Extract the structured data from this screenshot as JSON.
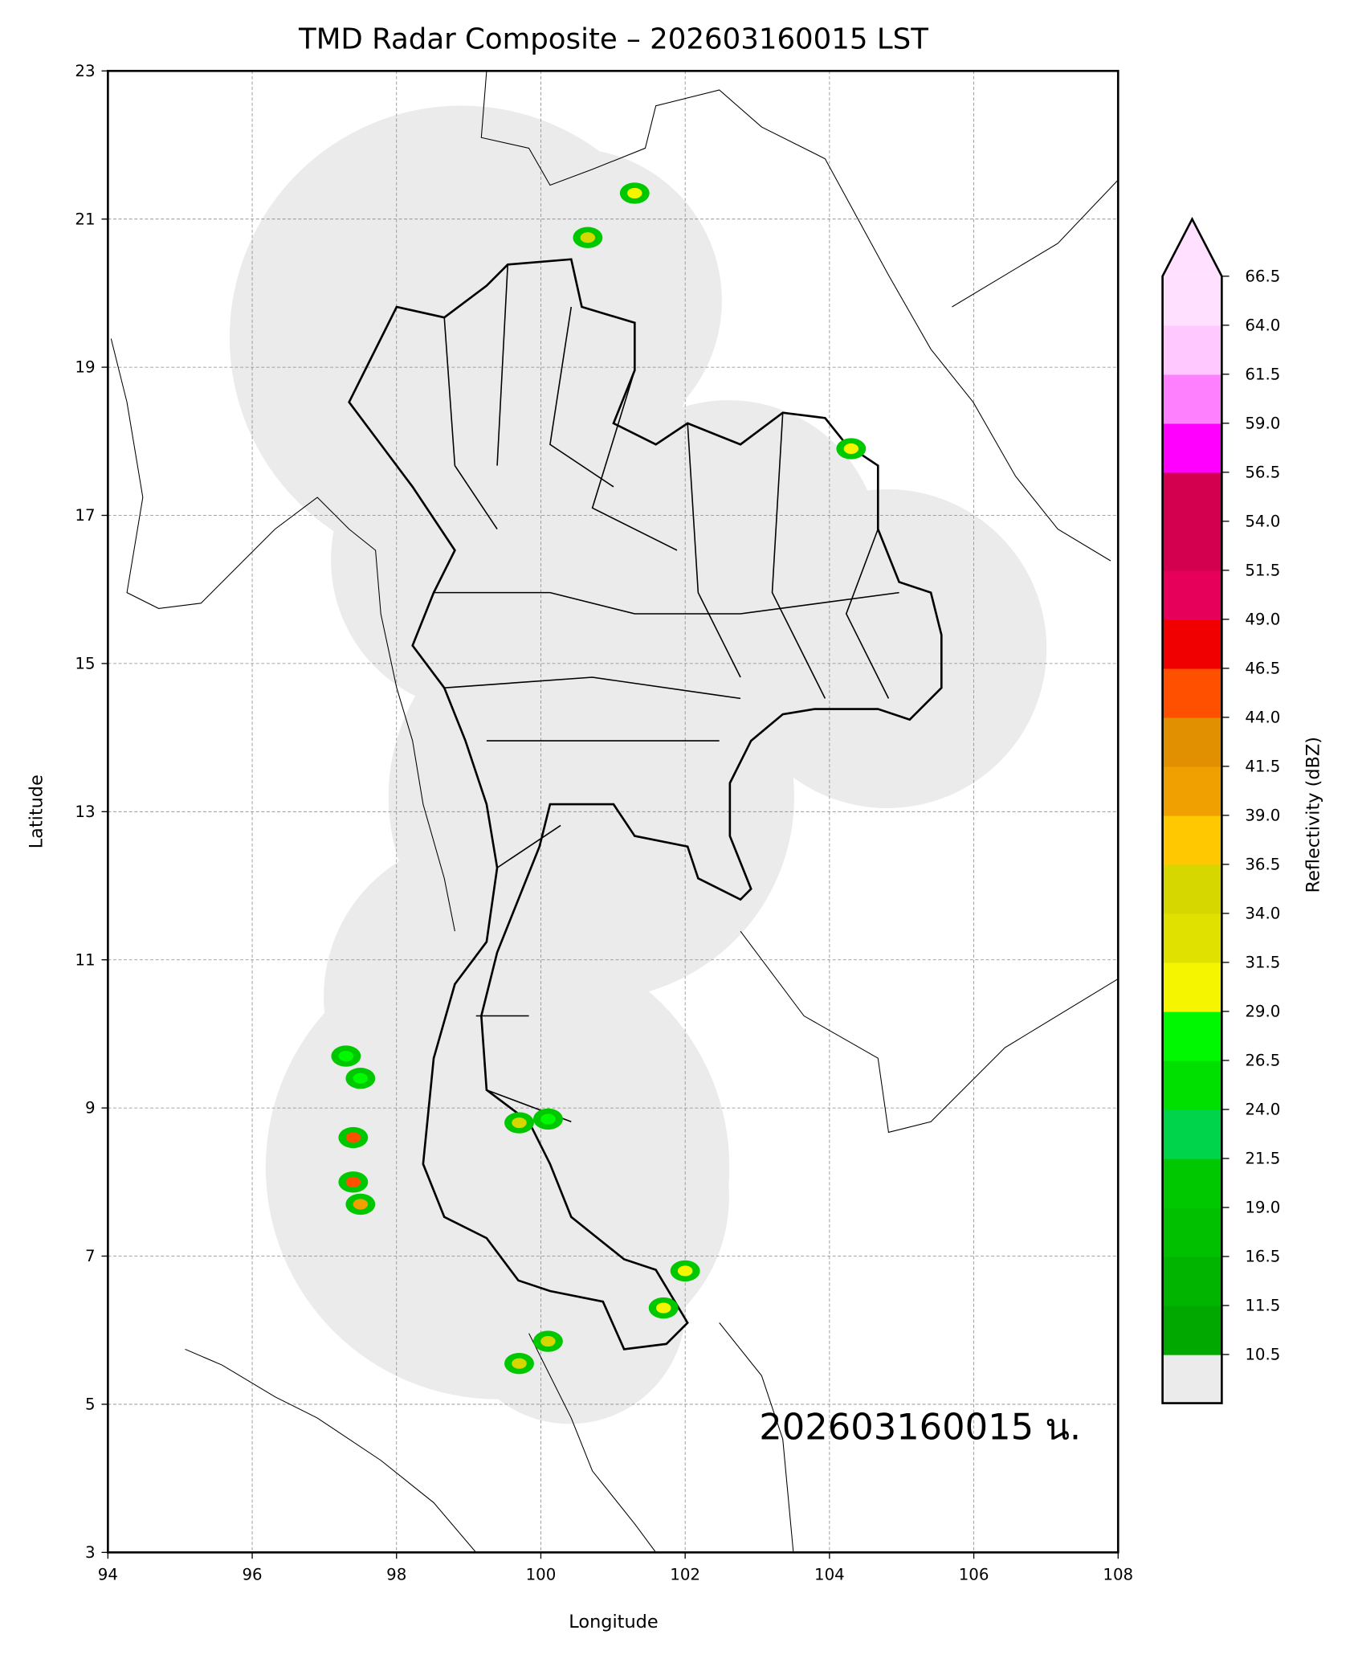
{
  "chart_data": {
    "type": "heatmap",
    "title": "TMD Radar Composite – 202603160015 LST",
    "xlabel": "Longitude",
    "ylabel": "Latitude",
    "xlim": [
      94,
      108
    ],
    "ylim": [
      3,
      23
    ],
    "xticks": [
      "94",
      "96",
      "98",
      "100",
      "102",
      "104",
      "106",
      "108"
    ],
    "yticks": [
      "3",
      "5",
      "7",
      "9",
      "11",
      "13",
      "15",
      "17",
      "19",
      "21",
      "23"
    ],
    "grid": true,
    "annotation": "202603160015 น.",
    "colorbar": {
      "label": "Reflectivity (dBZ)",
      "extend": "max",
      "under_color": "#ebebeb",
      "ticks": [
        "10.5",
        "11.5",
        "16.5",
        "19.0",
        "21.5",
        "24.0",
        "26.5",
        "29.0",
        "31.5",
        "34.0",
        "36.5",
        "39.0",
        "41.5",
        "44.0",
        "46.5",
        "49.0",
        "51.5",
        "54.0",
        "56.5",
        "59.0",
        "61.5",
        "64.0",
        "66.5"
      ],
      "colors": [
        "#00a800",
        "#00b400",
        "#00c000",
        "#00c800",
        "#00d44a",
        "#00e000",
        "#00f800",
        "#f5f500",
        "#e1e100",
        "#d7d700",
        "#ffc800",
        "#f0a000",
        "#e09000",
        "#ff5000",
        "#f00000",
        "#e6005a",
        "#d2004e",
        "#d2004e",
        "#ff00ff",
        "#ff80ff",
        "#ffc8ff",
        "#ffe0ff"
      ],
      "over_color": "#ffe0ff"
    },
    "radar_coverage_color": "#ebebeb",
    "echoes": [
      {
        "lon": 101.3,
        "lat": 21.35,
        "max_dbz": 29
      },
      {
        "lon": 100.65,
        "lat": 20.75,
        "max_dbz": 34
      },
      {
        "lon": 104.3,
        "lat": 17.9,
        "max_dbz": 29
      },
      {
        "lon": 97.5,
        "lat": 9.4,
        "max_dbz": 27
      },
      {
        "lon": 97.3,
        "lat": 9.7,
        "max_dbz": 27
      },
      {
        "lon": 97.4,
        "lat": 8.6,
        "max_dbz": 46
      },
      {
        "lon": 97.4,
        "lat": 8.0,
        "max_dbz": 46
      },
      {
        "lon": 97.5,
        "lat": 7.7,
        "max_dbz": 40
      },
      {
        "lon": 99.7,
        "lat": 8.8,
        "max_dbz": 34
      },
      {
        "lon": 100.1,
        "lat": 8.85,
        "max_dbz": 27
      },
      {
        "lon": 99.7,
        "lat": 5.55,
        "max_dbz": 36
      },
      {
        "lon": 100.1,
        "lat": 5.85,
        "max_dbz": 34
      },
      {
        "lon": 102.0,
        "lat": 6.8,
        "max_dbz": 31
      },
      {
        "lon": 101.7,
        "lat": 6.3,
        "max_dbz": 31
      }
    ]
  }
}
